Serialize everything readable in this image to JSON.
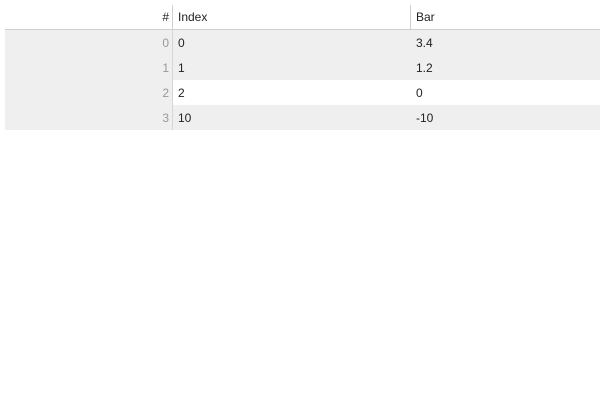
{
  "table": {
    "headers": {
      "row_number": "#",
      "index": "Index",
      "bar": "Bar"
    },
    "rows": [
      {
        "row_number": "0",
        "index": "0",
        "bar": "3.4"
      },
      {
        "row_number": "1",
        "index": "1",
        "bar": "1.2"
      },
      {
        "row_number": "2",
        "index": "2",
        "bar": "0"
      },
      {
        "row_number": "3",
        "index": "10",
        "bar": "-10"
      }
    ]
  },
  "colors": {
    "row_alt_background": "#efefef",
    "row_number_text": "#999999",
    "border": "#cfcfcf"
  }
}
